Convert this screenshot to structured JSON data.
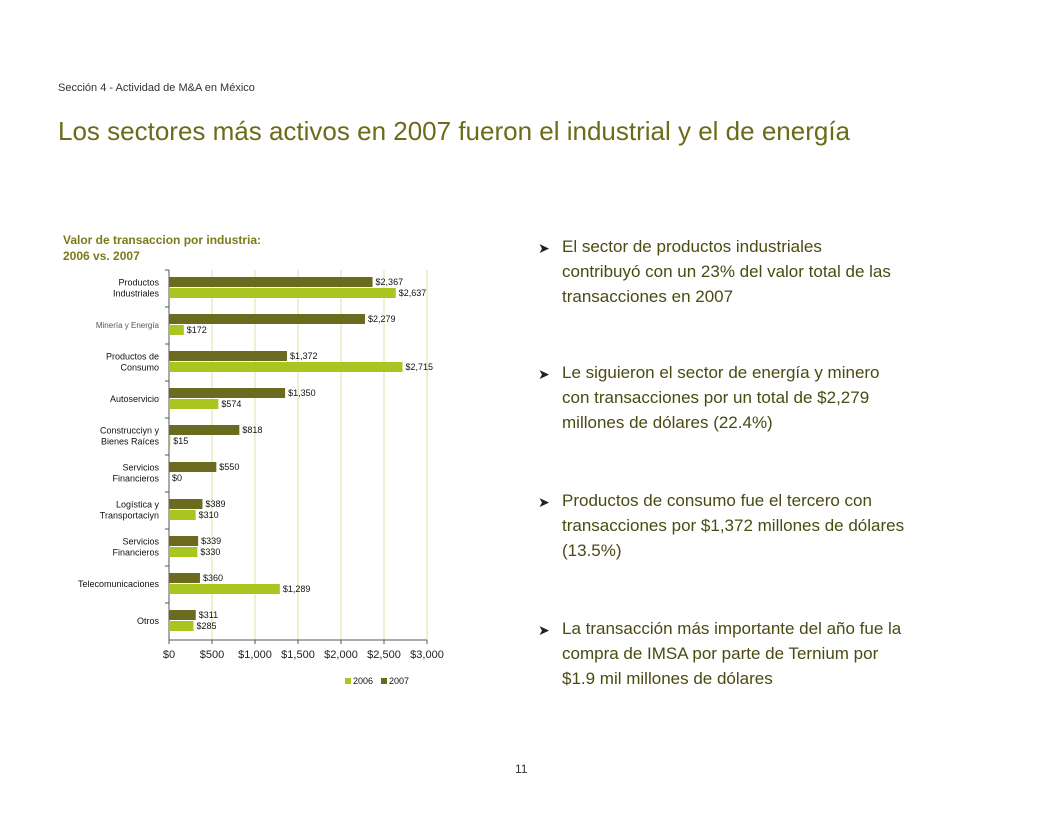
{
  "section_label": "Sección 4 - Actividad de M&A en México",
  "slide_title": "Los sectores más activos en 2007 fueron el industrial y el de energía",
  "page_number": "11",
  "colors": {
    "series_2006": "#a8c520",
    "series_2007": "#6b6b1f",
    "title": "#6b6b1a",
    "gridline": "#d8e6a0"
  },
  "chart_data": {
    "type": "bar",
    "orientation": "horizontal",
    "title_line1": "Valor de transaccion por industria:",
    "title_line2": "2006 vs. 2007",
    "categories": [
      [
        "Productos",
        "Industriales"
      ],
      [
        "Minería y Energía"
      ],
      [
        "Productos de",
        "Consumo"
      ],
      [
        "Autoservicio"
      ],
      [
        "Construcciyn y",
        "Bienes Raíces"
      ],
      [
        "Servicios",
        "Financieros"
      ],
      [
        "Logística y",
        "Transportaciyn"
      ],
      [
        "Servicios",
        "Financieros"
      ],
      [
        "Telecomunicaciones"
      ],
      [
        "Otros"
      ]
    ],
    "series": [
      {
        "name": "2007",
        "color": "#6b6b1f",
        "values": [
          2367,
          2279,
          1372,
          1350,
          818,
          550,
          389,
          339,
          360,
          311
        ],
        "labels": [
          "$2,367",
          "$2,279",
          "$1,372",
          "$1,350",
          "$818",
          "$550",
          "$389",
          "$339",
          "$360",
          "$311"
        ]
      },
      {
        "name": "2006",
        "color": "#a8c520",
        "values": [
          2637,
          172,
          2715,
          574,
          15,
          0,
          310,
          330,
          1289,
          285
        ],
        "labels": [
          "$2,637",
          "$172",
          "$2,715",
          "$574",
          "$15",
          "$0",
          "$310",
          "$330",
          "$1,289",
          "$285"
        ]
      }
    ],
    "xlim": [
      0,
      3000
    ],
    "xticks": [
      0,
      500,
      1000,
      1500,
      2000,
      2500,
      3000
    ],
    "xtick_labels": [
      "$0",
      "$500",
      "$1,000",
      "$1,500",
      "$2,000",
      "$2,500",
      "$3,000"
    ],
    "legend": [
      {
        "name": "2006",
        "color": "#a8c520"
      },
      {
        "name": "2007",
        "color": "#6b6b1f"
      }
    ],
    "legend_position": "bottom-right",
    "grid": true
  },
  "bullets": [
    {
      "lines": [
        "El sector de  productos industriales",
        "contribuyó con un 23% del valor total de las",
        "transacciones en 2007"
      ]
    },
    {
      "lines": [
        "Le siguieron el sector de energía y minero",
        "con transacciones por un total de $2,279",
        "millones de dólares (22.4%)"
      ]
    },
    {
      "lines": [
        "Productos de consumo fue el tercero con",
        "transacciones por $1,372 millones de dólares",
        "(13.5%)"
      ]
    },
    {
      "lines": [
        "La transacción más importante del año fue la",
        "compra de IMSA por parte de Ternium por",
        "$1.9 mil millones de dólares"
      ]
    }
  ]
}
